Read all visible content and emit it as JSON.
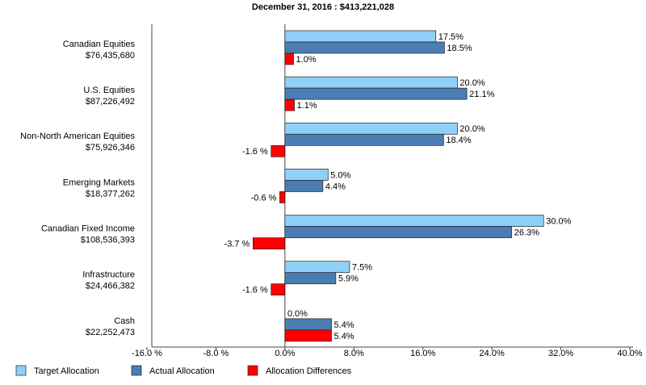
{
  "chart_data": {
    "type": "bar",
    "orientation": "horizontal",
    "title": "December 31, 2016 : $413,221,028",
    "categories": [
      "Canadian Equities",
      "U.S. Equities",
      "Non-North American Equities",
      "Emerging Markets",
      "Canadian Fixed Income",
      "Infrastructure",
      "Cash"
    ],
    "category_amounts": [
      "$76,435,680",
      "$87,226,492",
      "$75,926,346",
      "$18,377,262",
      "$108,536,393",
      "$24,466,382",
      "$22,252,473"
    ],
    "series": [
      {
        "name": "Target Allocation",
        "color": "#8fd0f8",
        "values": [
          17.5,
          20.0,
          20.0,
          5.0,
          30.0,
          7.5,
          0.0
        ],
        "value_labels": [
          "17.5%",
          "20.0%",
          "20.0%",
          "5.0%",
          "30.0%",
          "7.5%",
          "0.0%"
        ]
      },
      {
        "name": "Actual Allocation",
        "color": "#4a7db3",
        "values": [
          18.5,
          21.1,
          18.4,
          4.4,
          26.3,
          5.9,
          5.4
        ],
        "value_labels": [
          "18.5%",
          "21.1%",
          "18.4%",
          "4.4%",
          "26.3%",
          "5.9%",
          "5.4%"
        ]
      },
      {
        "name": "Allocation Differences",
        "color": "#ff0000",
        "values": [
          1.0,
          1.1,
          -1.6,
          -0.6,
          -3.7,
          -1.6,
          5.4
        ],
        "value_labels": [
          "1.0%",
          "1.1%",
          "-1.6 %",
          "-0.6 %",
          "-3.7 %",
          "-1.6 %",
          "5.4%"
        ]
      }
    ],
    "xlim": [
      -16,
      40
    ],
    "xticks": [
      {
        "value": -16,
        "label": "-16.0 %"
      },
      {
        "value": -8,
        "label": "-8.0 %"
      },
      {
        "value": 0,
        "label": "0.0%"
      },
      {
        "value": 8,
        "label": "8.0%"
      },
      {
        "value": 16,
        "label": "16.0%"
      },
      {
        "value": 24,
        "label": "24.0%"
      },
      {
        "value": 32,
        "label": "32.0%"
      },
      {
        "value": 40,
        "label": "40.0%"
      }
    ],
    "legend": "bottom-left"
  }
}
